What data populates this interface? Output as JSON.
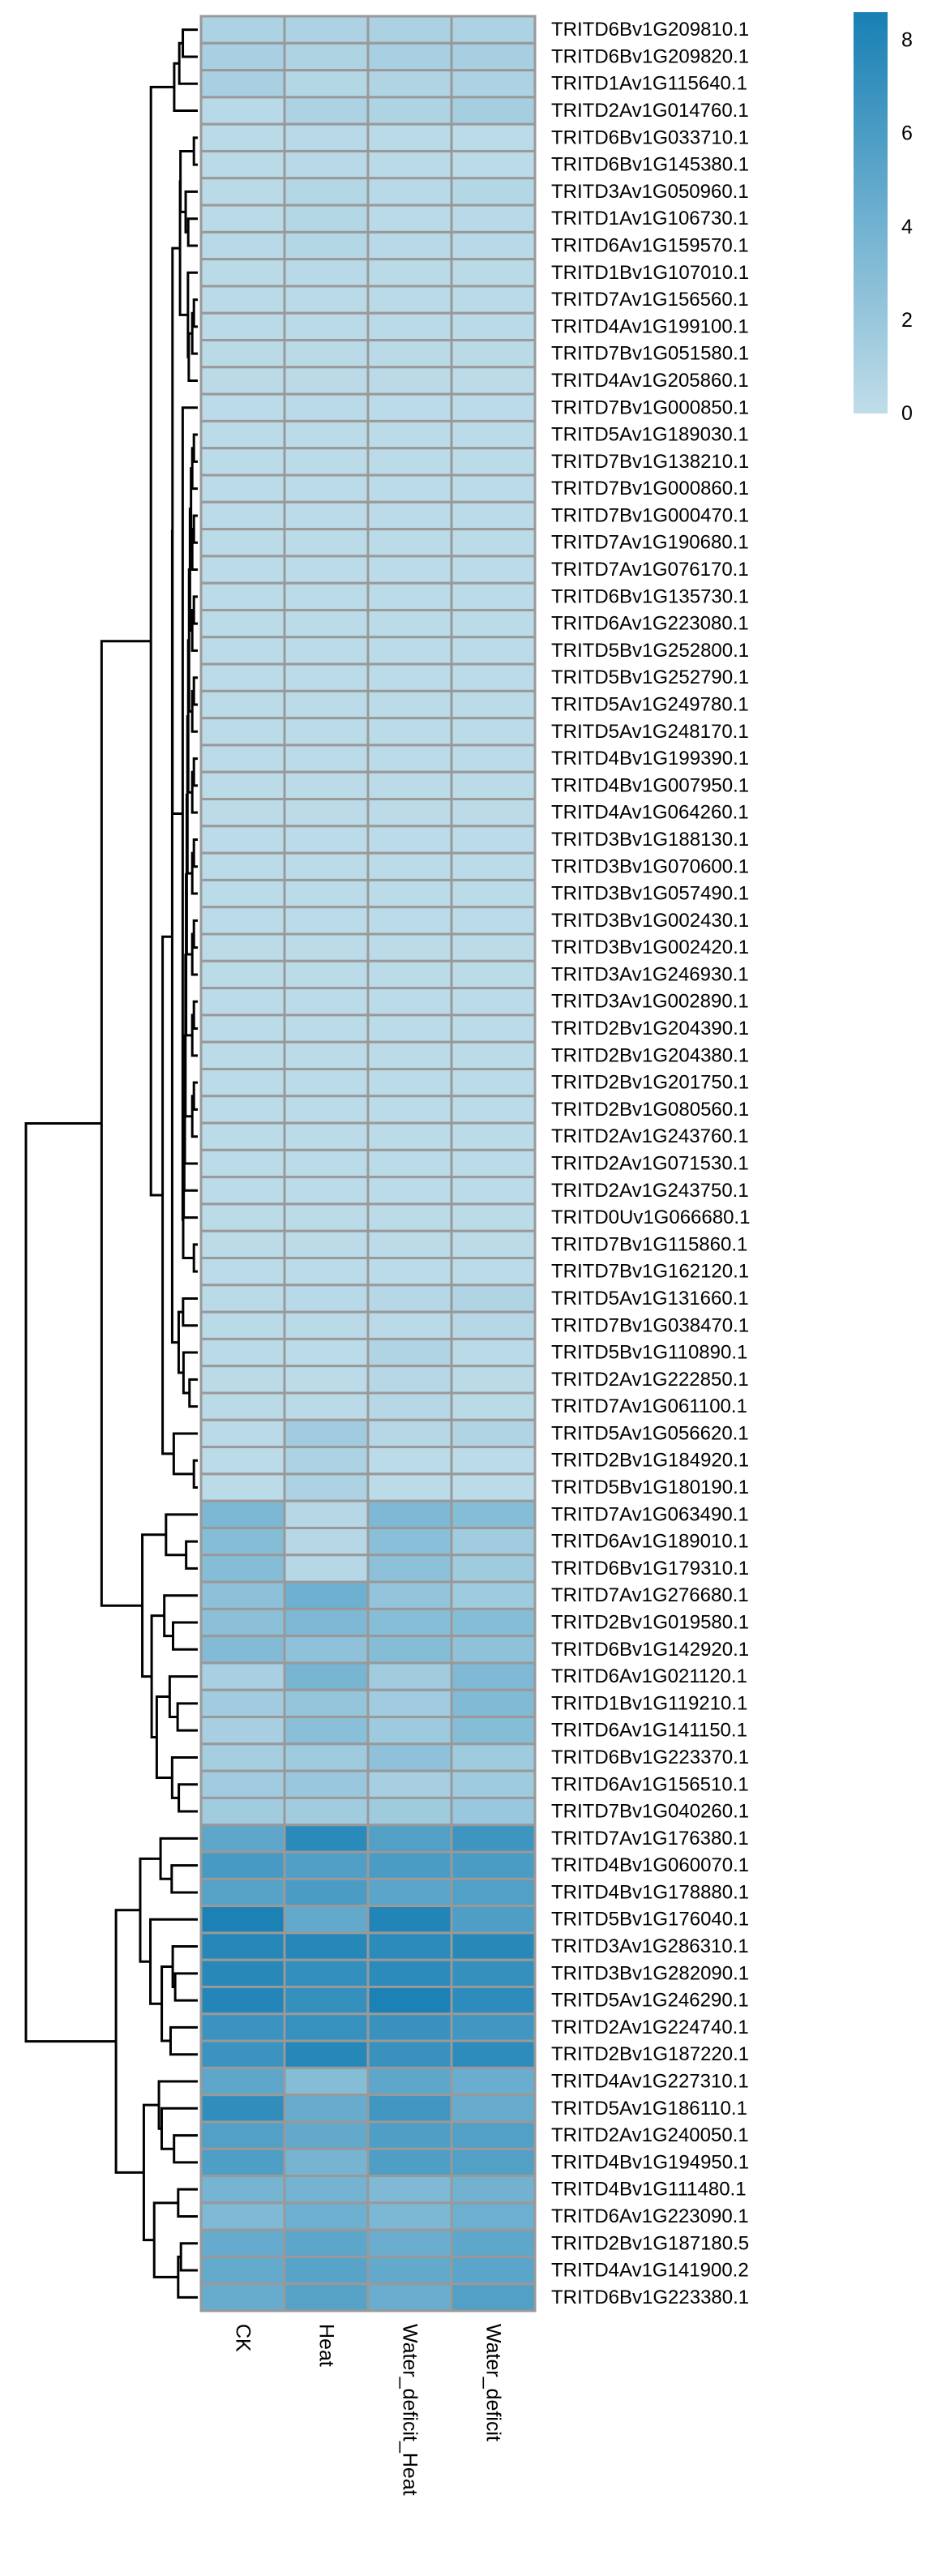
{
  "chart_data": {
    "type": "heatmap",
    "title": "",
    "columns": [
      "CK",
      "Heat",
      "Water_deficit_Heat",
      "Water_deficit"
    ],
    "rows": [
      "TRITD6Bv1G209810.1",
      "TRITD6Bv1G209820.1",
      "TRITD1Av1G115640.1",
      "TRITD2Av1G014760.1",
      "TRITD6Bv1G033710.1",
      "TRITD6Bv1G145380.1",
      "TRITD3Av1G050960.1",
      "TRITD1Av1G106730.1",
      "TRITD6Av1G159570.1",
      "TRITD1Bv1G107010.1",
      "TRITD7Av1G156560.1",
      "TRITD4Av1G199100.1",
      "TRITD7Bv1G051580.1",
      "TRITD4Av1G205860.1",
      "TRITD7Bv1G000850.1",
      "TRITD5Av1G189030.1",
      "TRITD7Bv1G138210.1",
      "TRITD7Bv1G000860.1",
      "TRITD7Bv1G000470.1",
      "TRITD7Av1G190680.1",
      "TRITD7Av1G076170.1",
      "TRITD6Bv1G135730.1",
      "TRITD6Av1G223080.1",
      "TRITD5Bv1G252800.1",
      "TRITD5Bv1G252790.1",
      "TRITD5Av1G249780.1",
      "TRITD5Av1G248170.1",
      "TRITD4Bv1G199390.1",
      "TRITD4Bv1G007950.1",
      "TRITD4Av1G064260.1",
      "TRITD3Bv1G188130.1",
      "TRITD3Bv1G070600.1",
      "TRITD3Bv1G057490.1",
      "TRITD3Bv1G002430.1",
      "TRITD3Bv1G002420.1",
      "TRITD3Av1G246930.1",
      "TRITD3Av1G002890.1",
      "TRITD2Bv1G204390.1",
      "TRITD2Bv1G204380.1",
      "TRITD2Bv1G201750.1",
      "TRITD2Bv1G080560.1",
      "TRITD2Av1G243760.1",
      "TRITD2Av1G071530.1",
      "TRITD2Av1G243750.1",
      "TRITD0Uv1G066680.1",
      "TRITD7Bv1G115860.1",
      "TRITD7Bv1G162120.1",
      "TRITD5Av1G131660.1",
      "TRITD7Bv1G038470.1",
      "TRITD5Bv1G110890.1",
      "TRITD2Av1G222850.1",
      "TRITD7Av1G061100.1",
      "TRITD5Av1G056620.1",
      "TRITD2Bv1G184920.1",
      "TRITD5Bv1G180190.1",
      "TRITD7Av1G063490.1",
      "TRITD6Av1G189010.1",
      "TRITD6Bv1G179310.1",
      "TRITD7Av1G276680.1",
      "TRITD2Bv1G019580.1",
      "TRITD6Bv1G142920.1",
      "TRITD6Av1G021120.1",
      "TRITD1Bv1G119210.1",
      "TRITD6Av1G141150.1",
      "TRITD6Bv1G223370.1",
      "TRITD6Av1G156510.1",
      "TRITD7Bv1G040260.1",
      "TRITD7Av1G176380.1",
      "TRITD4Bv1G060070.1",
      "TRITD4Bv1G178880.1",
      "TRITD5Bv1G176040.1",
      "TRITD3Av1G286310.1",
      "TRITD3Bv1G282090.1",
      "TRITD5Av1G246290.1",
      "TRITD2Av1G224740.1",
      "TRITD2Bv1G187220.1",
      "TRITD4Av1G227310.1",
      "TRITD5Av1G186110.1",
      "TRITD2Av1G240050.1",
      "TRITD4Bv1G194950.1",
      "TRITD4Bv1G111480.1",
      "TRITD6Av1G223090.1",
      "TRITD2Bv1G187180.5",
      "TRITD4Av1G141900.2",
      "TRITD6Bv1G223380.1"
    ],
    "values": [
      [
        1.0,
        1.0,
        1.1,
        1.0
      ],
      [
        1.2,
        0.9,
        1.2,
        1.3
      ],
      [
        1.2,
        0.6,
        0.8,
        1.0
      ],
      [
        0.4,
        1.0,
        0.9,
        1.4
      ],
      [
        0.3,
        0.4,
        0.3,
        0.2
      ],
      [
        0.3,
        0.4,
        0.3,
        0.2
      ],
      [
        0.3,
        0.6,
        0.4,
        0.6
      ],
      [
        0.3,
        0.6,
        0.3,
        0.4
      ],
      [
        0.4,
        0.6,
        0.4,
        0.4
      ],
      [
        0.3,
        0.4,
        0.3,
        0.3
      ],
      [
        0.3,
        0.3,
        0.3,
        0.3
      ],
      [
        0.3,
        0.3,
        0.3,
        0.3
      ],
      [
        0.3,
        0.3,
        0.3,
        0.3
      ],
      [
        0.3,
        0.3,
        0.3,
        0.2
      ],
      [
        0.2,
        0.3,
        0.2,
        0.2
      ],
      [
        0.2,
        0.2,
        0.2,
        0.2
      ],
      [
        0.2,
        0.2,
        0.2,
        0.2
      ],
      [
        0.2,
        0.2,
        0.2,
        0.2
      ],
      [
        0.2,
        0.2,
        0.2,
        0.2
      ],
      [
        0.2,
        0.2,
        0.2,
        0.2
      ],
      [
        0.2,
        0.2,
        0.2,
        0.2
      ],
      [
        0.2,
        0.2,
        0.2,
        0.2
      ],
      [
        0.2,
        0.2,
        0.2,
        0.2
      ],
      [
        0.2,
        0.2,
        0.2,
        0.2
      ],
      [
        0.2,
        0.2,
        0.2,
        0.2
      ],
      [
        0.2,
        0.2,
        0.2,
        0.2
      ],
      [
        0.2,
        0.2,
        0.2,
        0.2
      ],
      [
        0.2,
        0.2,
        0.2,
        0.2
      ],
      [
        0.2,
        0.2,
        0.2,
        0.2
      ],
      [
        0.2,
        0.2,
        0.2,
        0.2
      ],
      [
        0.2,
        0.2,
        0.2,
        0.2
      ],
      [
        0.2,
        0.2,
        0.2,
        0.2
      ],
      [
        0.2,
        0.2,
        0.2,
        0.2
      ],
      [
        0.2,
        0.2,
        0.2,
        0.2
      ],
      [
        0.2,
        0.2,
        0.2,
        0.2
      ],
      [
        0.2,
        0.2,
        0.2,
        0.2
      ],
      [
        0.2,
        0.2,
        0.2,
        0.2
      ],
      [
        0.2,
        0.2,
        0.2,
        0.2
      ],
      [
        0.2,
        0.2,
        0.2,
        0.2
      ],
      [
        0.2,
        0.2,
        0.2,
        0.2
      ],
      [
        0.2,
        0.2,
        0.2,
        0.2
      ],
      [
        0.2,
        0.2,
        0.2,
        0.2
      ],
      [
        0.2,
        0.2,
        0.2,
        0.2
      ],
      [
        0.2,
        0.2,
        0.2,
        0.2
      ],
      [
        0.2,
        0.2,
        0.2,
        0.2
      ],
      [
        0.2,
        0.2,
        0.2,
        0.2
      ],
      [
        0.2,
        0.2,
        0.2,
        0.2
      ],
      [
        0.3,
        0.4,
        0.5,
        0.8
      ],
      [
        0.3,
        0.3,
        0.3,
        0.5
      ],
      [
        0.3,
        0.2,
        0.8,
        0.3
      ],
      [
        0.3,
        0.2,
        0.5,
        0.3
      ],
      [
        0.3,
        0.3,
        0.5,
        0.3
      ],
      [
        0.3,
        1.6,
        0.5,
        0.8
      ],
      [
        0.2,
        1.0,
        0.2,
        0.2
      ],
      [
        0.2,
        1.0,
        0.2,
        0.2
      ],
      [
        3.5,
        0.5,
        3.4,
        3.0
      ],
      [
        3.0,
        0.5,
        2.8,
        1.6
      ],
      [
        3.0,
        0.5,
        2.6,
        1.7
      ],
      [
        2.6,
        4.2,
        2.3,
        1.7
      ],
      [
        2.7,
        3.4,
        2.9,
        3.0
      ],
      [
        3.1,
        2.5,
        3.0,
        2.5
      ],
      [
        1.2,
        3.7,
        1.6,
        3.3
      ],
      [
        1.6,
        2.2,
        1.6,
        3.2
      ],
      [
        1.3,
        2.8,
        1.8,
        3.0
      ],
      [
        1.4,
        1.7,
        2.5,
        1.7
      ],
      [
        1.6,
        2.0,
        1.3,
        1.7
      ],
      [
        1.6,
        1.6,
        1.7,
        2.0
      ],
      [
        5.0,
        7.7,
        5.6,
        6.7
      ],
      [
        6.2,
        5.7,
        6.0,
        6.0
      ],
      [
        5.4,
        6.0,
        5.2,
        5.6
      ],
      [
        8.4,
        4.8,
        8.1,
        5.8
      ],
      [
        7.9,
        7.9,
        7.6,
        7.8
      ],
      [
        7.8,
        7.2,
        7.6,
        7.1
      ],
      [
        8.0,
        7.1,
        8.4,
        7.5
      ],
      [
        6.8,
        7.0,
        6.9,
        6.5
      ],
      [
        6.8,
        7.9,
        6.9,
        7.5
      ],
      [
        5.0,
        3.0,
        5.0,
        4.4
      ],
      [
        7.3,
        4.5,
        6.5,
        4.5
      ],
      [
        5.6,
        4.8,
        5.8,
        5.6
      ],
      [
        5.8,
        3.8,
        5.8,
        5.6
      ],
      [
        3.8,
        3.9,
        3.3,
        4.0
      ],
      [
        3.3,
        4.2,
        3.5,
        4.3
      ],
      [
        4.6,
        5.1,
        4.4,
        5.0
      ],
      [
        4.7,
        5.3,
        4.8,
        5.2
      ],
      [
        4.5,
        5.4,
        4.4,
        5.6
      ]
    ],
    "color_scale": {
      "min": 0,
      "max": 8.6,
      "low_color": "#c0dde9",
      "high_color": "#1880b4"
    },
    "legend": {
      "placement": "top-right",
      "ticks": [
        "0",
        "2",
        "4",
        "6",
        "8"
      ]
    },
    "cell_border_color": "#999999",
    "row_dendrogram": true
  }
}
